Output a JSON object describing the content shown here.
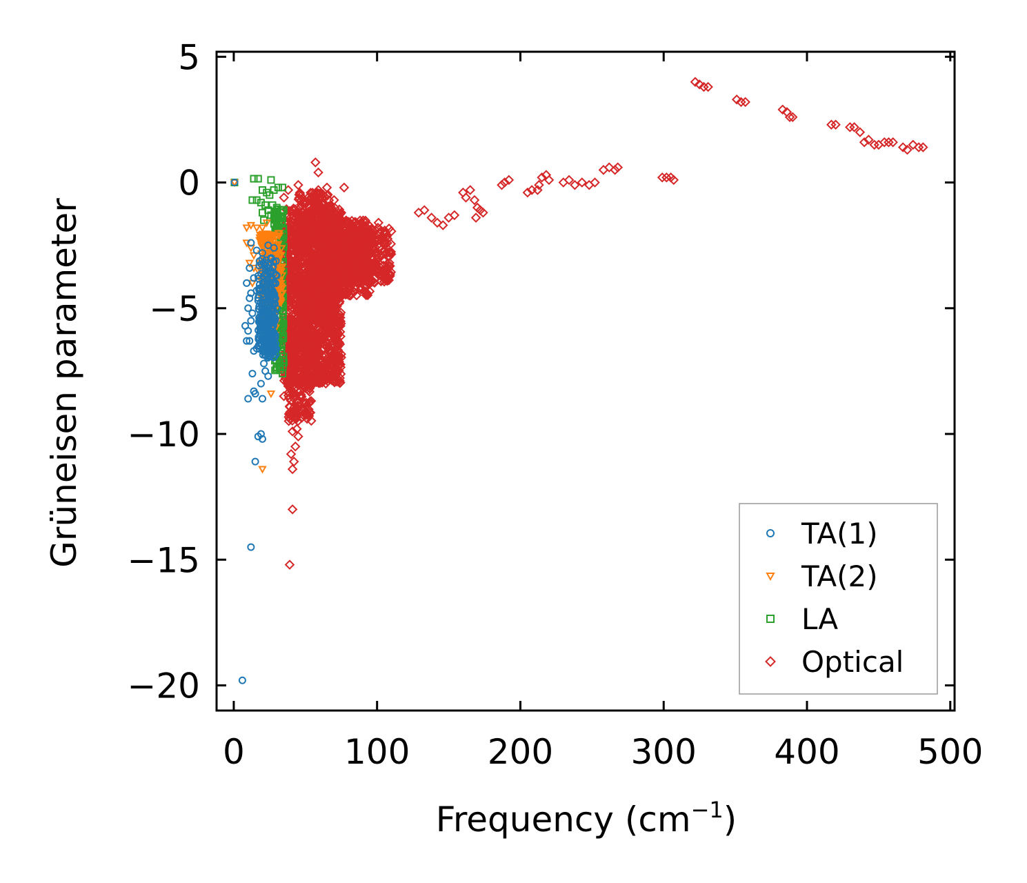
{
  "chart_data": {
    "type": "scatter",
    "title": "",
    "xlabel": "Frequency (cm",
    "xlabel_sup": "−1",
    "xlabel_end": ")",
    "ylabel": "Grüneisen parameter",
    "xlim": [
      -12,
      503
    ],
    "ylim": [
      -21,
      5.2
    ],
    "xticks": [
      0,
      100,
      200,
      300,
      400,
      500
    ],
    "xtick_labels": [
      "0",
      "100",
      "200",
      "300",
      "400",
      "500"
    ],
    "yticks": [
      5,
      0,
      -5,
      -10,
      -15,
      -20
    ],
    "ytick_labels": [
      "5",
      "0",
      "−5",
      "−10",
      "−15",
      "−20"
    ],
    "grid": false,
    "legend_position": "lower-right",
    "series": [
      {
        "name": "TA(1)",
        "marker": "circle",
        "color": "#1f77b4",
        "points": [
          [
            0.5,
            0
          ],
          [
            6,
            -19.8
          ],
          [
            12,
            -14.5
          ],
          [
            15,
            -11.1
          ],
          [
            19,
            -10.0
          ],
          [
            20,
            -10.2
          ],
          [
            17,
            -10.1
          ],
          [
            10,
            -8.6
          ],
          [
            20,
            -8.6
          ],
          [
            14,
            -8.3
          ],
          [
            15,
            -8.4
          ],
          [
            19,
            -8.0
          ],
          [
            13,
            -7.6
          ],
          [
            22,
            -7.5
          ],
          [
            21,
            -7.2
          ],
          [
            24,
            -7.7
          ],
          [
            16,
            -6.6
          ],
          [
            14,
            -6.7
          ],
          [
            9,
            -6.3
          ],
          [
            11,
            -6.3
          ],
          [
            8,
            -5.7
          ],
          [
            10,
            -5.9
          ],
          [
            12,
            -5.5
          ],
          [
            13,
            -5.2
          ],
          [
            10,
            -5.0
          ],
          [
            11,
            -4.6
          ],
          [
            12,
            -4.4
          ],
          [
            9,
            -4.0
          ],
          [
            16,
            -4.3
          ],
          [
            17,
            -4.7
          ],
          [
            14,
            -3.8
          ],
          [
            11,
            -3.4
          ],
          [
            12,
            -2.4
          ],
          [
            16,
            -2.7
          ],
          [
            20,
            -2.8
          ],
          [
            22,
            -3.2
          ],
          [
            26,
            -3.0
          ],
          [
            28,
            -2.6
          ],
          [
            24,
            -2.5
          ],
          [
            28,
            -3.6
          ],
          [
            30,
            -3.7
          ],
          [
            26,
            -4.1
          ]
        ],
        "dense_regions": [
          [
            17,
            30,
            -7.0,
            -3.0,
            220
          ],
          [
            20,
            28,
            -6.8,
            -5.0,
            80
          ]
        ]
      },
      {
        "name": "TA(2)",
        "marker": "triangle-down",
        "color": "#ff7f0e",
        "points": [
          [
            0.5,
            0
          ],
          [
            9,
            -1.8
          ],
          [
            12,
            -1.7
          ],
          [
            16,
            -1.8
          ],
          [
            20,
            -1.8
          ],
          [
            23,
            -1.6
          ],
          [
            9,
            -2.4
          ],
          [
            12,
            -2.6
          ],
          [
            18,
            -2.3
          ],
          [
            14,
            -2.9
          ],
          [
            21,
            -2.2
          ],
          [
            25,
            -2.4
          ],
          [
            11,
            -3.2
          ],
          [
            14,
            -3.4
          ],
          [
            17,
            -3.5
          ],
          [
            19,
            -3.9
          ],
          [
            13,
            -4.0
          ],
          [
            22,
            -3.0
          ],
          [
            26,
            -3.3
          ],
          [
            28,
            -2.1
          ],
          [
            29,
            -2.9
          ],
          [
            31,
            -3.2
          ],
          [
            20,
            -4.8
          ],
          [
            22,
            -5.4
          ],
          [
            24,
            -5.9
          ],
          [
            26,
            -8.4
          ],
          [
            20,
            -11.4
          ],
          [
            33,
            -4.0
          ],
          [
            34,
            -4.4
          ]
        ],
        "dense_regions": [
          [
            18,
            34,
            -4.8,
            -2.0,
            180
          ],
          [
            22,
            30,
            -6.5,
            -4.0,
            60
          ]
        ]
      },
      {
        "name": "LA",
        "marker": "square",
        "color": "#2ca02c",
        "points": [
          [
            0.5,
            0
          ],
          [
            14,
            0.15
          ],
          [
            17,
            0.15
          ],
          [
            26,
            0.1
          ],
          [
            20,
            -0.3
          ],
          [
            23,
            -0.4
          ],
          [
            25,
            -0.5
          ],
          [
            28,
            -0.3
          ],
          [
            31,
            -0.2
          ],
          [
            34,
            -0.2
          ],
          [
            13,
            -0.7
          ],
          [
            16,
            -0.7
          ],
          [
            19,
            -0.8
          ],
          [
            22,
            -0.9
          ],
          [
            24,
            -1.1
          ],
          [
            27,
            -0.9
          ],
          [
            30,
            -1.0
          ],
          [
            20,
            -1.2
          ],
          [
            21,
            -1.5
          ],
          [
            26,
            -1.3
          ],
          [
            33,
            -1.1
          ],
          [
            30,
            -2.0
          ],
          [
            32,
            -2.5
          ],
          [
            34,
            -3.0
          ],
          [
            31,
            -3.5
          ],
          [
            33,
            -4.0
          ],
          [
            30,
            -4.5
          ],
          [
            32,
            -5.0
          ],
          [
            34,
            -5.5
          ],
          [
            31,
            -6.2
          ],
          [
            33,
            -6.8
          ],
          [
            32,
            -7.2
          ],
          [
            34,
            -7.6
          ],
          [
            29,
            -6.9
          ]
        ],
        "dense_regions": [
          [
            28,
            35,
            -7.5,
            -1.0,
            160
          ]
        ]
      },
      {
        "name": "Optical",
        "marker": "diamond",
        "color": "#d62728",
        "points": [
          [
            39,
            -15.2
          ],
          [
            41,
            -13.0
          ],
          [
            41,
            -11.4
          ],
          [
            42,
            -11.1
          ],
          [
            40,
            -10.8
          ],
          [
            43,
            -10.5
          ],
          [
            45,
            -10.1
          ],
          [
            44,
            -9.8
          ],
          [
            41,
            -9.9
          ],
          [
            43,
            -9.3
          ],
          [
            45,
            -9.1
          ],
          [
            39,
            -8.9
          ],
          [
            42,
            -8.6
          ],
          [
            46,
            -8.3
          ],
          [
            38,
            -8.1
          ],
          [
            36,
            -7.8
          ],
          [
            35,
            -8.5
          ],
          [
            50,
            -7.3
          ],
          [
            52,
            -6.9
          ],
          [
            56,
            -6.4
          ],
          [
            58,
            -6.6
          ],
          [
            60,
            -6.0
          ],
          [
            62,
            -5.4
          ],
          [
            55,
            -0.5
          ],
          [
            59,
            -0.3
          ],
          [
            62,
            -0.6
          ],
          [
            65,
            -0.2
          ],
          [
            57,
            0.8
          ],
          [
            59,
            0.4
          ],
          [
            77,
            -0.2
          ],
          [
            45,
            -0.1
          ],
          [
            38,
            -0.3
          ],
          [
            35,
            -0.6
          ],
          [
            48,
            -0.8
          ],
          [
            68,
            -1.0
          ],
          [
            70,
            -0.7
          ],
          [
            75,
            -1.2
          ],
          [
            101,
            -1.6
          ],
          [
            99,
            -1.9
          ],
          [
            95,
            -2.2
          ],
          [
            129,
            -1.2
          ],
          [
            133,
            -1.1
          ],
          [
            138,
            -1.4
          ],
          [
            142,
            -1.6
          ],
          [
            146,
            -1.7
          ],
          [
            150,
            -1.4
          ],
          [
            154,
            -1.3
          ],
          [
            160,
            -0.4
          ],
          [
            165,
            -0.3
          ],
          [
            162,
            -0.6
          ],
          [
            168,
            -0.7
          ],
          [
            170,
            -1.0
          ],
          [
            174,
            -1.2
          ],
          [
            172,
            -1.1
          ],
          [
            169,
            -1.4
          ],
          [
            187,
            -0.1
          ],
          [
            189,
            0.0
          ],
          [
            192,
            0.1
          ],
          [
            205,
            -0.4
          ],
          [
            208,
            -0.3
          ],
          [
            212,
            -0.3
          ],
          [
            215,
            0.2
          ],
          [
            218,
            0.3
          ],
          [
            220,
            0.1
          ],
          [
            213,
            -0.1
          ],
          [
            230,
            0.0
          ],
          [
            234,
            0.1
          ],
          [
            238,
            -0.1
          ],
          [
            243,
            0.0
          ],
          [
            248,
            -0.1
          ],
          [
            252,
            0.0
          ],
          [
            258,
            0.5
          ],
          [
            262,
            0.6
          ],
          [
            266,
            0.5
          ],
          [
            268,
            0.6
          ],
          [
            299,
            0.2
          ],
          [
            302,
            0.2
          ],
          [
            305,
            0.2
          ],
          [
            307,
            0.1
          ],
          [
            322,
            4.0
          ],
          [
            325,
            3.9
          ],
          [
            328,
            3.8
          ],
          [
            331,
            3.8
          ],
          [
            351,
            3.3
          ],
          [
            354,
            3.2
          ],
          [
            357,
            3.2
          ],
          [
            383,
            2.9
          ],
          [
            386,
            2.8
          ],
          [
            388,
            2.6
          ],
          [
            390,
            2.6
          ],
          [
            417,
            2.3
          ],
          [
            420,
            2.3
          ],
          [
            430,
            2.2
          ],
          [
            433,
            2.2
          ],
          [
            437,
            2.0
          ],
          [
            440,
            1.6
          ],
          [
            443,
            1.7
          ],
          [
            447,
            1.5
          ],
          [
            450,
            1.5
          ],
          [
            454,
            1.6
          ],
          [
            457,
            1.6
          ],
          [
            460,
            1.6
          ],
          [
            467,
            1.4
          ],
          [
            470,
            1.3
          ],
          [
            474,
            1.5
          ],
          [
            478,
            1.4
          ],
          [
            481,
            1.4
          ]
        ],
        "dense_regions": [
          [
            35,
            75,
            -8.0,
            -1.0,
            1400
          ],
          [
            60,
            95,
            -4.5,
            -1.5,
            500
          ],
          [
            75,
            110,
            -4.0,
            -1.8,
            300
          ],
          [
            38,
            55,
            -9.5,
            -5.5,
            250
          ],
          [
            45,
            70,
            -5.5,
            -0.4,
            400
          ]
        ]
      }
    ]
  }
}
